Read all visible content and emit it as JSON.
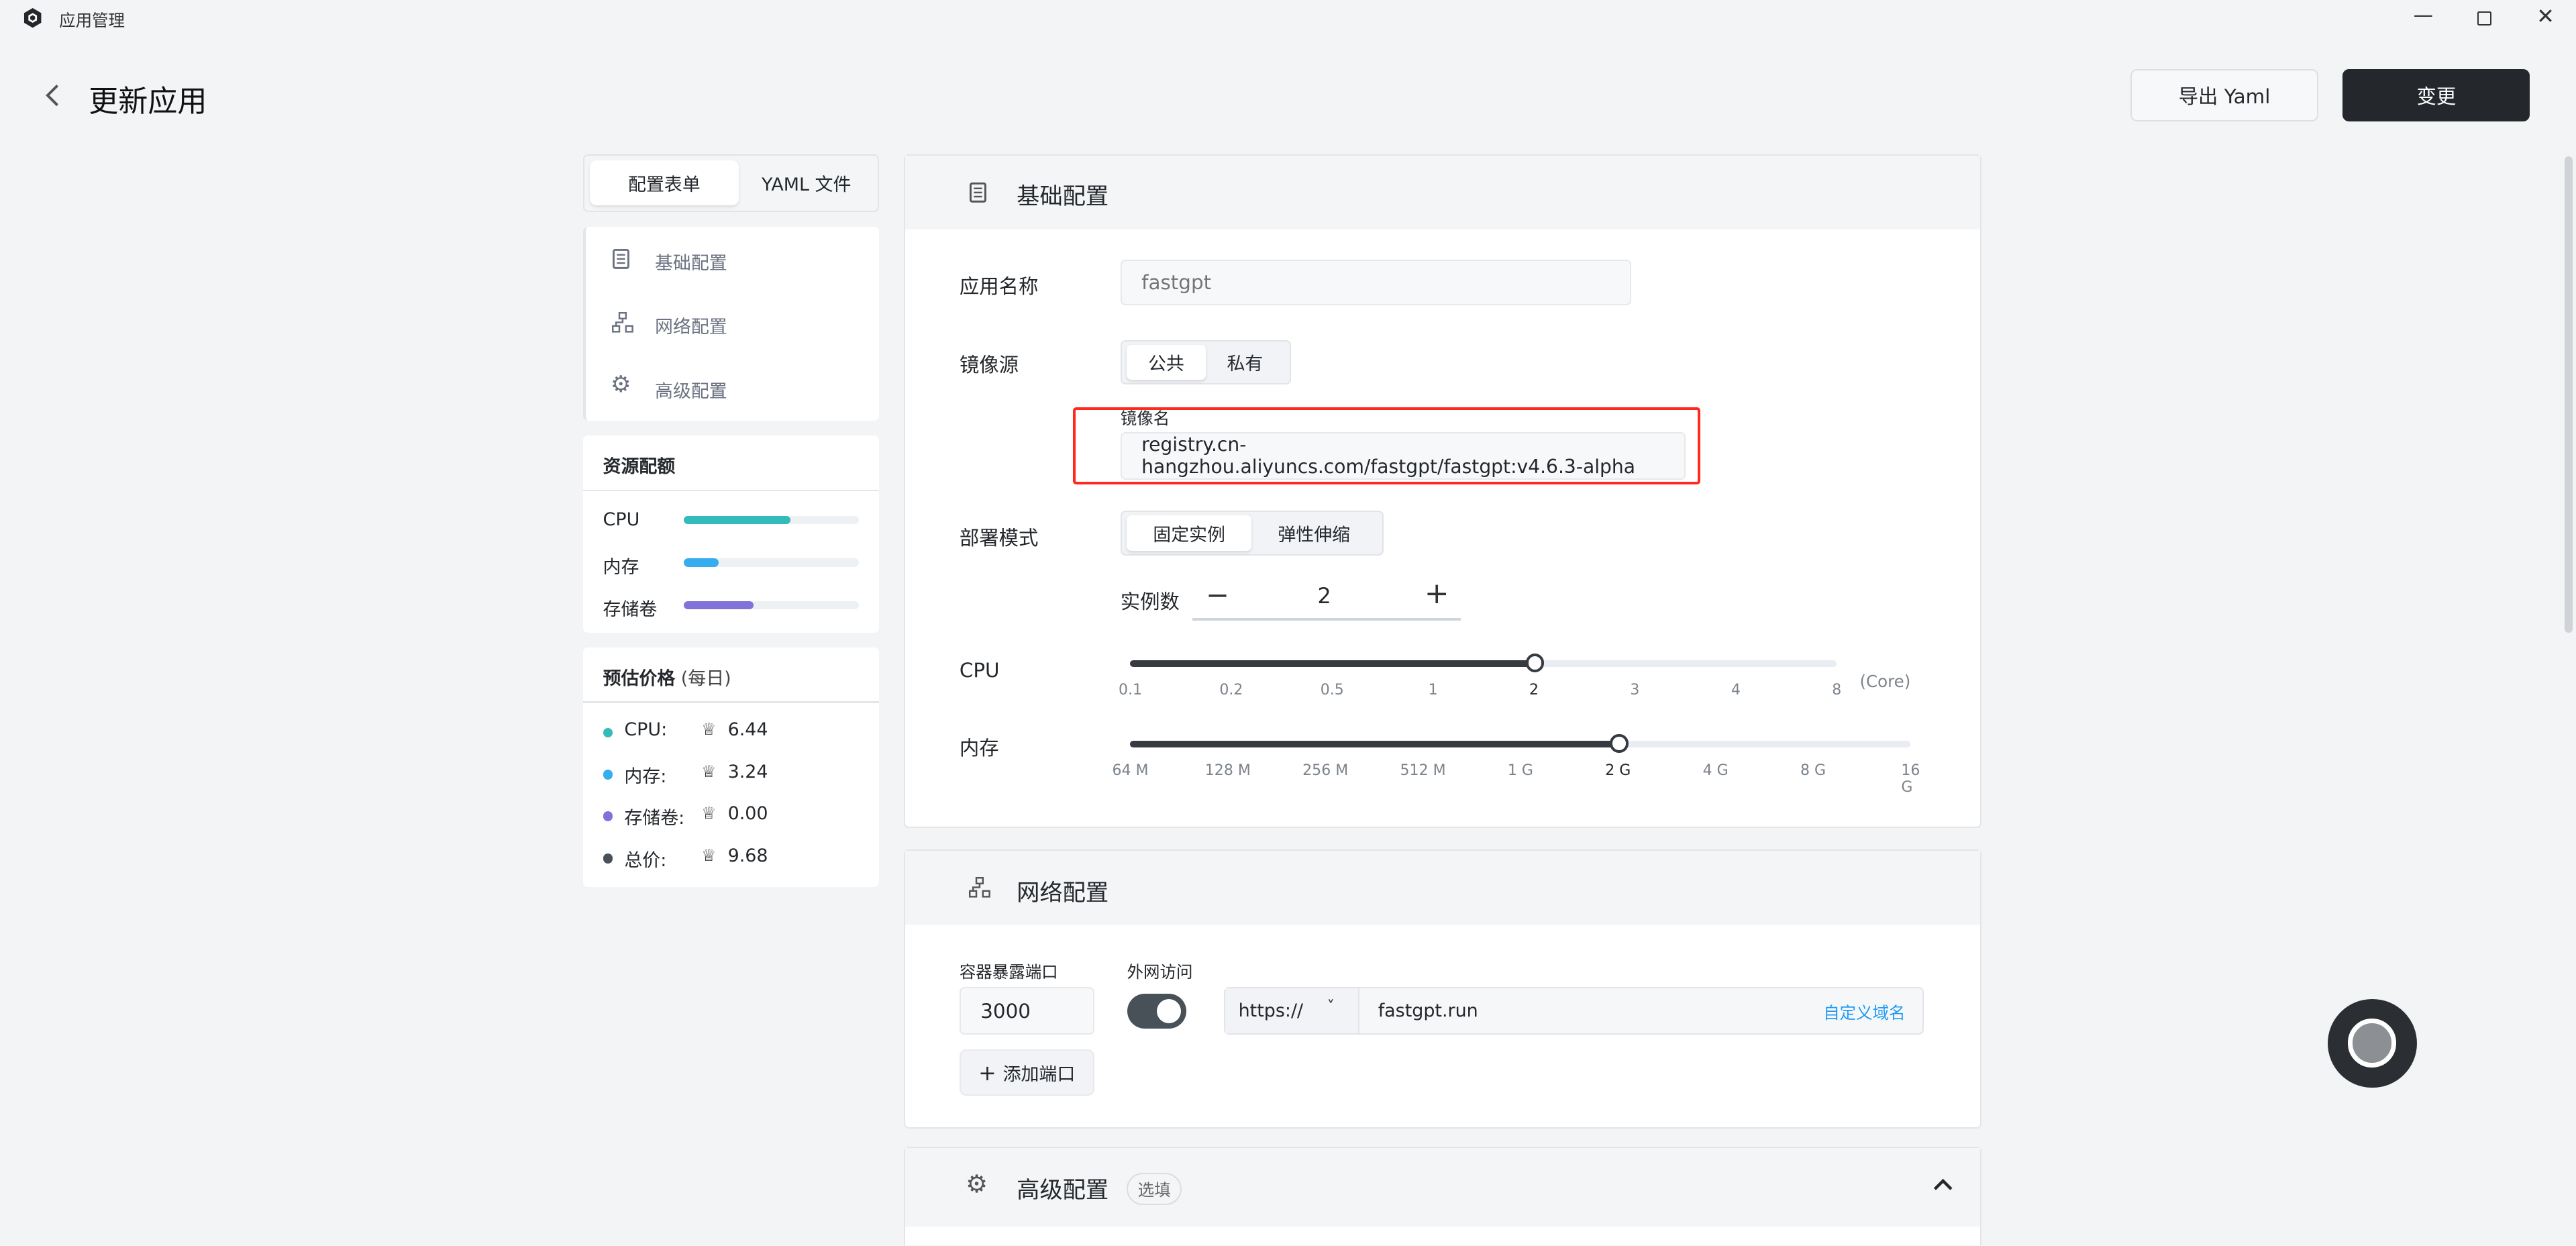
{
  "window": {
    "title": "应用管理",
    "controls": [
      "minimize-icon",
      "restore-icon",
      "close-icon"
    ]
  },
  "header": {
    "title": "更新应用",
    "export_label": "导出 Yaml",
    "submit_label": "变更"
  },
  "left": {
    "tabs": [
      {
        "label": "配置表单",
        "active": true
      },
      {
        "label": "YAML 文件",
        "active": false
      }
    ],
    "nav": [
      {
        "label": "基础配置",
        "icon": "document-icon"
      },
      {
        "label": "网络配置",
        "icon": "network-icon"
      },
      {
        "label": "高级配置",
        "icon": "gear-icon"
      }
    ],
    "quota": {
      "title": "资源配额",
      "items": [
        {
          "label": "CPU",
          "percent": 0.61,
          "color": "#33bbb9"
        },
        {
          "label": "内存",
          "percent": 0.2,
          "color": "#36adef"
        },
        {
          "label": "存储卷",
          "percent": 0.4,
          "color": "#8172d8"
        }
      ]
    },
    "price": {
      "title": "预估价格",
      "unit": "(每日)",
      "items": [
        {
          "label": "CPU:",
          "value": "6.44",
          "color": "#33bbb9"
        },
        {
          "label": "内存:",
          "value": "3.24",
          "color": "#36adef"
        },
        {
          "label": "存储卷:",
          "value": "0.00",
          "color": "#8172d8"
        },
        {
          "label": "总价:",
          "value": "9.68",
          "color": "#485058"
        }
      ]
    }
  },
  "basic": {
    "title": "基础配置",
    "app_name_label": "应用名称",
    "app_name_placeholder": "fastgpt",
    "image_source_label": "镜像源",
    "image_source_options": [
      "公共",
      "私有"
    ],
    "image_source_selected": "公共",
    "image_name_label": "镜像名",
    "image_name_value": "registry.cn-hangzhou.aliyuncs.com/fastgpt/fastgpt:v4.6.3-alpha",
    "deploy_mode_label": "部署模式",
    "deploy_mode_options": [
      "固定实例",
      "弹性伸缩"
    ],
    "deploy_mode_selected": "固定实例",
    "replicas_label": "实例数",
    "replicas_value": "2",
    "minus": "−",
    "plus": "+",
    "cpu_label": "CPU",
    "cpu_ticks": [
      "0.1",
      "0.2",
      "0.5",
      "1",
      "2",
      "3",
      "4",
      "8"
    ],
    "cpu_selected": "2",
    "cpu_unit": "(Core)",
    "mem_label": "内存",
    "mem_ticks": [
      "64 M",
      "128 M",
      "256 M",
      "512 M",
      "1 G",
      "2 G",
      "4 G",
      "8 G",
      "16 G"
    ],
    "mem_selected": "2 G"
  },
  "network": {
    "title": "网络配置",
    "port_label": "容器暴露端口",
    "port_value": "3000",
    "public_label": "外网访问",
    "public_enabled": true,
    "protocol": "https://",
    "domain": "fastgpt.run",
    "custom_domain": "自定义域名",
    "add_port": "添加端口",
    "add_icon": "+"
  },
  "advanced": {
    "title": "高级配置",
    "badge": "选填"
  },
  "colors": {
    "accent": "#24282c",
    "link": "#219bf4",
    "highlight": "#ff2a1f"
  }
}
